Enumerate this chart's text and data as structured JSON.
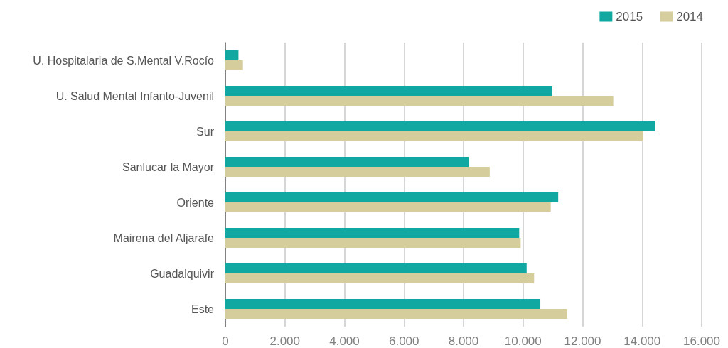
{
  "chart_data": {
    "type": "bar",
    "orientation": "horizontal",
    "categories": [
      "U. Hospitalaria de S.Mental V.Rocío",
      "U. Salud Mental Infanto-Juvenil",
      "Sur",
      "Sanlucar la Mayor",
      "Oriente",
      "Mairena del Aljarafe",
      "Guadalquivir",
      "Este"
    ],
    "series": [
      {
        "name": "2015",
        "color": "#11a8a2",
        "values": [
          440,
          10980,
          14440,
          8170,
          11180,
          9870,
          10120,
          10580
        ]
      },
      {
        "name": "2014",
        "color": "#d5cd9c",
        "values": [
          590,
          13030,
          14030,
          8880,
          10930,
          9920,
          10370,
          11480
        ]
      }
    ],
    "xlim": [
      0,
      16000
    ],
    "xticks": [
      0,
      {
        "value": 2000,
        "label": "2.000"
      },
      {
        "value": 4000,
        "label": "4.000"
      },
      {
        "value": 6000,
        "label": "6.000"
      },
      {
        "value": 8000,
        "label": "8.000"
      },
      {
        "value": 10000,
        "label": "10.000"
      },
      {
        "value": 12000,
        "label": "12.000"
      },
      {
        "value": 14000,
        "label": "14.000"
      },
      {
        "value": 16000,
        "label": "16.000"
      }
    ],
    "grid": "x",
    "legend": "top right"
  }
}
